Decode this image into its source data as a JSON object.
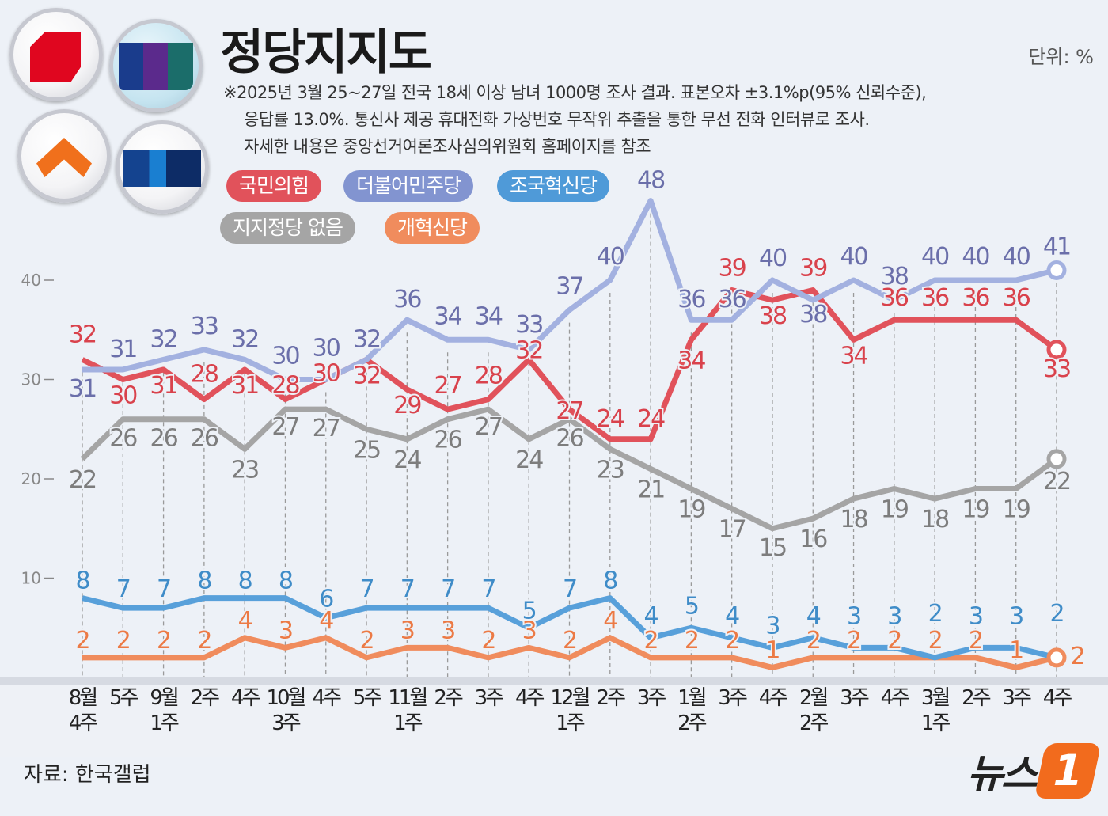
{
  "header": {
    "title": "정당지지도",
    "unit": "단위: %",
    "note_lines": [
      "※2025년 3월 25~27일 전국 18세 이상 남녀 1000명 조사 결과. 표본오차 ±3.1%p(95% 신뢰수준),",
      "응답률 13.0%. 통신사 제공 휴대전화 가상번호 무작위 추출을 통한 무선 전화 인터뷰로 조사.",
      "자세한 내용은 중앙선거여론조사심의위원회 홈페이지를 참조"
    ]
  },
  "logos": [
    "people-power-party-logo",
    "democratic-party-logo",
    "reform-party-logo",
    "rebuilding-korea-party-logo"
  ],
  "footer": {
    "source": "자료: 한국갤럽",
    "brand": "뉴스",
    "brand_mark": "1"
  },
  "chart_data": {
    "type": "line",
    "title": "정당지지도",
    "ylim": [
      0,
      50
    ],
    "yticks": [
      10,
      20,
      30,
      40
    ],
    "grid": "dashed vertical at each category",
    "legend": "top-left",
    "categories": [
      "8월\n4주",
      "5주",
      "9월\n1주",
      "2주",
      "4주",
      "10월\n3주",
      "4주",
      "5주",
      "11월\n1주",
      "2주",
      "3주",
      "4주",
      "12월\n1주",
      "2주",
      "3주",
      "1월\n2주",
      "3주",
      "4주",
      "2월\n2주",
      "3주",
      "4주",
      "3월\n1주",
      "2주",
      "3주",
      "4주"
    ],
    "series": [
      {
        "name": "국민의힘",
        "color": "#e1525b",
        "label_color": "#d9424c",
        "values": [
          32,
          30,
          31,
          28,
          31,
          28,
          30,
          32,
          29,
          27,
          28,
          32,
          27,
          24,
          24,
          34,
          39,
          38,
          39,
          34,
          36,
          36,
          36,
          36,
          33
        ]
      },
      {
        "name": "더불어민주당",
        "color": "#a3b1e0",
        "label_color": "#6b6faa",
        "values": [
          31,
          31,
          32,
          33,
          32,
          30,
          30,
          32,
          36,
          34,
          34,
          33,
          37,
          40,
          48,
          36,
          36,
          40,
          38,
          40,
          38,
          40,
          40,
          40,
          41
        ]
      },
      {
        "name": "조국혁신당",
        "color": "#58a0da",
        "label_color": "#3f8cc8",
        "values": [
          8,
          7,
          7,
          8,
          8,
          8,
          6,
          7,
          7,
          7,
          7,
          5,
          7,
          8,
          4,
          5,
          4,
          3,
          4,
          3,
          3,
          2,
          3,
          3,
          2
        ]
      },
      {
        "name": "지지정당 없음",
        "color": "#a5a5a5",
        "label_color": "#7d7d7d",
        "values": [
          22,
          26,
          26,
          26,
          23,
          27,
          27,
          25,
          24,
          26,
          27,
          24,
          26,
          23,
          21,
          19,
          17,
          15,
          16,
          18,
          19,
          18,
          19,
          19,
          22
        ]
      },
      {
        "name": "개혁신당",
        "color": "#f08c5d",
        "label_color": "#ec7a45",
        "values": [
          2,
          2,
          2,
          2,
          4,
          3,
          4,
          2,
          3,
          3,
          2,
          3,
          2,
          4,
          2,
          2,
          2,
          1,
          2,
          2,
          2,
          2,
          2,
          1,
          2
        ]
      }
    ]
  }
}
